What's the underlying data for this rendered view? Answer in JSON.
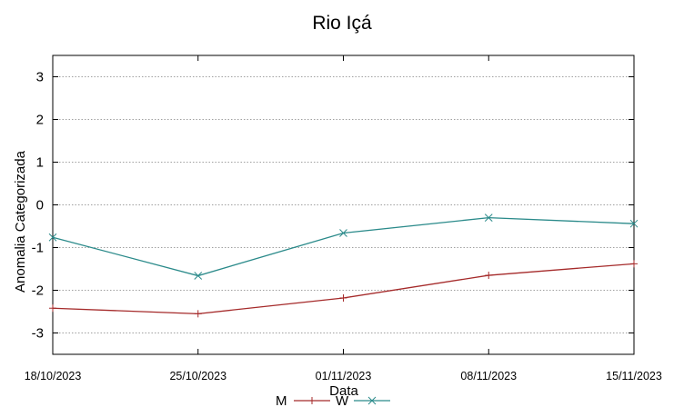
{
  "chart_data": {
    "type": "line",
    "title": "Rio Içá",
    "xlabel": "Data",
    "ylabel": "Anomalia Categorizada",
    "categories": [
      "18/10/2023",
      "25/10/2023",
      "01/11/2023",
      "08/11/2023",
      "15/11/2023"
    ],
    "ylim": [
      -3.5,
      3.5
    ],
    "yticks": [
      3,
      2,
      1,
      0,
      -1,
      -2,
      -3
    ],
    "grid": true,
    "legend_position": "bottom-center",
    "series": [
      {
        "name": "M",
        "values": [
          -2.42,
          -2.55,
          -2.18,
          -1.65,
          -1.38
        ],
        "color": "#a52a2a",
        "marker": "+"
      },
      {
        "name": "W",
        "values": [
          -0.76,
          -1.66,
          -0.66,
          -0.3,
          -0.44
        ],
        "color": "#2a8a8a",
        "marker": "x"
      }
    ]
  }
}
